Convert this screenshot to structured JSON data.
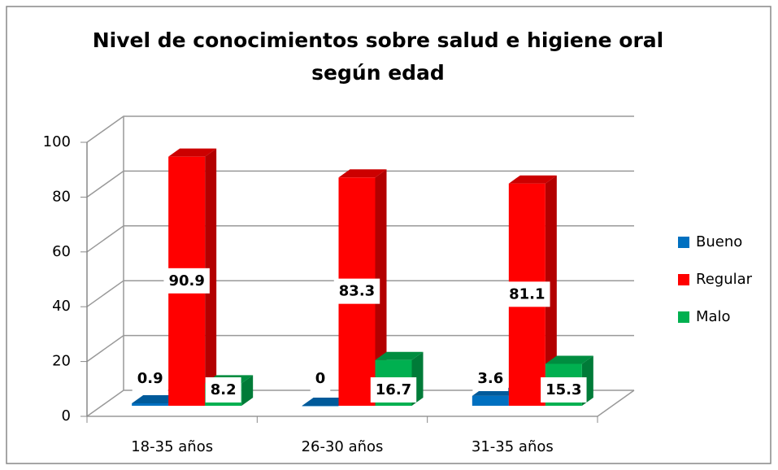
{
  "chart_data": {
    "type": "bar3d",
    "title": "Nivel de conocimientos sobre salud e higiene oral según edad",
    "categories": [
      "18-35 años",
      "26-30 años",
      "31-35 años"
    ],
    "series": [
      {
        "name": "Bueno",
        "color": "#0070c0",
        "values": [
          0.9,
          0,
          3.6
        ]
      },
      {
        "name": "Regular",
        "color": "#ff0000",
        "values": [
          90.9,
          83.3,
          81.1
        ]
      },
      {
        "name": "Malo",
        "color": "#00b050",
        "values": [
          8.2,
          16.7,
          15.3
        ]
      }
    ],
    "ylim": [
      0,
      100
    ],
    "yticks": [
      0,
      20,
      40,
      60,
      80,
      100
    ],
    "grid": true,
    "legend": "right"
  }
}
